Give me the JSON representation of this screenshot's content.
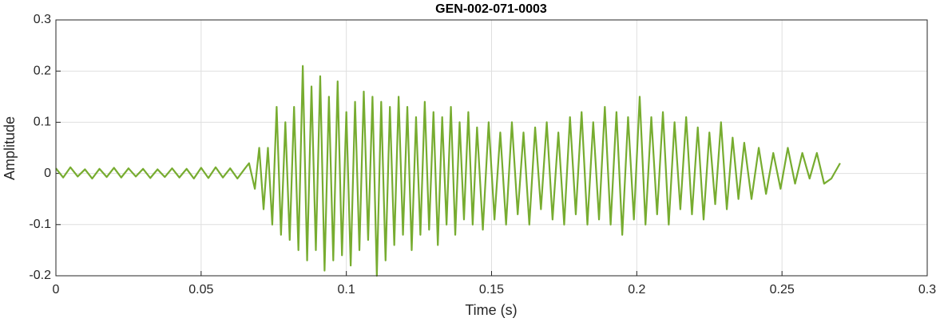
{
  "chart_data": {
    "type": "line",
    "title": "GEN-002-071-0003",
    "xlabel": "Time (s)",
    "ylabel": "Amplitude",
    "color": "#77ac30",
    "grid": true,
    "xlim": [
      0,
      0.3
    ],
    "xticks": [
      0,
      0.05,
      0.1,
      0.15,
      0.2,
      0.25,
      0.3
    ],
    "ylim": [
      -0.2,
      0.3
    ],
    "yticks": [
      -0.2,
      -0.1,
      0,
      0.1,
      0.2,
      0.3
    ],
    "x": [
      0,
      0.0025,
      0.005,
      0.0075,
      0.01,
      0.0125,
      0.015,
      0.0175,
      0.02,
      0.0225,
      0.025,
      0.0275,
      0.03,
      0.0325,
      0.035,
      0.0375,
      0.04,
      0.0425,
      0.045,
      0.0475,
      0.05,
      0.0525,
      0.055,
      0.0575,
      0.06,
      0.0625,
      0.065,
      0.0665,
      0.0685,
      0.07,
      0.0715,
      0.073,
      0.0745,
      0.076,
      0.0775,
      0.079,
      0.0805,
      0.082,
      0.0835,
      0.085,
      0.0865,
      0.088,
      0.0895,
      0.091,
      0.0925,
      0.094,
      0.0955,
      0.097,
      0.0985,
      0.1,
      0.1015,
      0.103,
      0.1045,
      0.106,
      0.1075,
      0.109,
      0.1105,
      0.112,
      0.1135,
      0.115,
      0.1165,
      0.118,
      0.1195,
      0.121,
      0.1225,
      0.124,
      0.1255,
      0.127,
      0.1285,
      0.13,
      0.1315,
      0.133,
      0.1345,
      0.136,
      0.1375,
      0.139,
      0.1405,
      0.142,
      0.1435,
      0.145,
      0.147,
      0.149,
      0.151,
      0.153,
      0.155,
      0.157,
      0.159,
      0.161,
      0.163,
      0.165,
      0.167,
      0.169,
      0.171,
      0.173,
      0.175,
      0.177,
      0.179,
      0.181,
      0.183,
      0.185,
      0.187,
      0.189,
      0.191,
      0.193,
      0.195,
      0.197,
      0.199,
      0.201,
      0.203,
      0.205,
      0.207,
      0.209,
      0.211,
      0.213,
      0.215,
      0.217,
      0.219,
      0.221,
      0.223,
      0.225,
      0.227,
      0.229,
      0.231,
      0.233,
      0.235,
      0.237,
      0.2395,
      0.242,
      0.2445,
      0.247,
      0.2495,
      0.252,
      0.2545,
      0.257,
      0.2595,
      0.262,
      0.2645,
      0.267,
      0.27
    ],
    "values": [
      0.01,
      -0.008,
      0.012,
      -0.006,
      0.008,
      -0.01,
      0.009,
      -0.007,
      0.011,
      -0.008,
      0.01,
      -0.006,
      0.009,
      -0.009,
      0.008,
      -0.007,
      0.01,
      -0.008,
      0.009,
      -0.01,
      0.011,
      -0.009,
      0.012,
      -0.008,
      0.01,
      -0.01,
      0.009,
      0.02,
      -0.03,
      0.05,
      -0.07,
      0.05,
      -0.1,
      0.13,
      -0.12,
      0.1,
      -0.13,
      0.13,
      -0.15,
      0.21,
      -0.17,
      0.17,
      -0.15,
      0.19,
      -0.19,
      0.15,
      -0.17,
      0.18,
      -0.16,
      0.12,
      -0.18,
      0.14,
      -0.15,
      0.16,
      -0.13,
      0.15,
      -0.2,
      0.14,
      -0.17,
      0.13,
      -0.14,
      0.15,
      -0.12,
      0.13,
      -0.15,
      0.11,
      -0.12,
      0.14,
      -0.11,
      0.12,
      -0.14,
      0.11,
      -0.1,
      0.13,
      -0.12,
      0.1,
      -0.09,
      0.12,
      -0.1,
      0.09,
      -0.11,
      0.1,
      -0.09,
      0.08,
      -0.1,
      0.1,
      -0.08,
      0.08,
      -0.1,
      0.09,
      -0.07,
      0.1,
      -0.09,
      0.08,
      -0.1,
      0.11,
      -0.08,
      0.12,
      -0.1,
      0.1,
      -0.09,
      0.13,
      -0.1,
      0.12,
      -0.12,
      0.11,
      -0.09,
      0.15,
      -0.1,
      0.11,
      -0.08,
      0.12,
      -0.1,
      0.1,
      -0.07,
      0.11,
      -0.08,
      0.09,
      -0.09,
      0.08,
      -0.06,
      0.1,
      -0.07,
      0.07,
      -0.05,
      0.06,
      -0.05,
      0.05,
      -0.04,
      0.04,
      -0.03,
      0.05,
      -0.02,
      0.04,
      -0.01,
      0.04,
      -0.02,
      -0.01,
      0.02
    ]
  }
}
